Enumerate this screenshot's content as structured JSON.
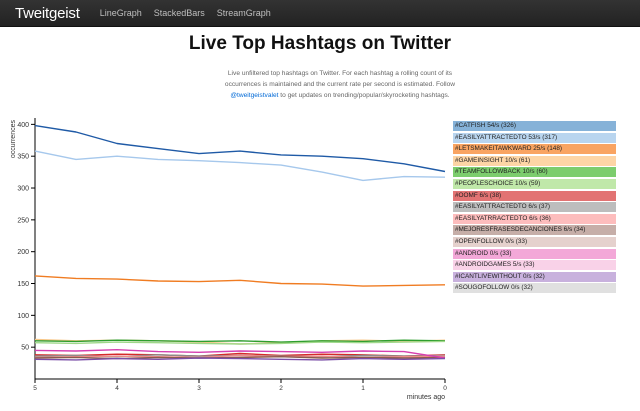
{
  "navbar": {
    "brand": "Tweitgeist",
    "links": [
      "LineGraph",
      "StackedBars",
      "StreamGraph"
    ]
  },
  "page_title": "Live Top Hashtags on Twitter",
  "intro": {
    "text_before": "Live unfiltered top hashtags on Twitter. For each hashtag a rolling count of its occurrences is maintained and the current rate per second is estimated. Follow ",
    "link": "@tweitgeistvalet",
    "text_after": " to get updates on trending/popular/skyrocketing hashtags."
  },
  "legend": [
    {
      "label": "#CATFISH 54/s (326)",
      "color": "#86b2d8"
    },
    {
      "label": "#EASILYATTRACTEDTO 53/s (317)",
      "color": "#b9d5ef"
    },
    {
      "label": "#LETSMAKEITAWKWARD 25/s (148)",
      "color": "#f9a462"
    },
    {
      "label": "#GAMEINSIGHT 10/s (61)",
      "color": "#fdd5a6"
    },
    {
      "label": "#TEAMFOLLOWBACK 10/s (60)",
      "color": "#7ccd6d"
    },
    {
      "label": "#PEOPLESCHOICE 10/s (59)",
      "color": "#c0e8a9"
    },
    {
      "label": "#OOMF 6/s (38)",
      "color": "#e27373"
    },
    {
      "label": "#EASILYATTRACTEDTO 6/s (37)",
      "color": "#bdbdbd"
    },
    {
      "label": "#EASILYATRRACTEDTO 6/s (36)",
      "color": "#fdbdbd"
    },
    {
      "label": "#MEJORESFRASESDECANCIONES 6/s (34)",
      "color": "#c6aea8"
    },
    {
      "label": "#OPENFOLLOW 0/s (33)",
      "color": "#e5d1cd"
    },
    {
      "label": "#ANDROID 0/s (33)",
      "color": "#f3a8d8"
    },
    {
      "label": "#ANDROIDGAMES 5/s (33)",
      "color": "#f9d2e8"
    },
    {
      "label": "#ICANTLIVEWITHOUT 0/s (32)",
      "color": "#c8b1dd"
    },
    {
      "label": "#SOUGOFOLLOW 0/s (32)",
      "color": "#e0e0e0"
    }
  ],
  "chart_data": {
    "type": "line",
    "ylabel": "occurrences",
    "xlabel": "minutes ago",
    "x_ticks": [
      "5",
      "4",
      "3",
      "2",
      "1",
      "0"
    ],
    "y_ticks": [
      "50",
      "100",
      "150",
      "200",
      "250",
      "300",
      "350",
      "400"
    ],
    "xlim": [
      5,
      0
    ],
    "ylim": [
      0,
      410
    ],
    "grid": false,
    "x": [
      5,
      4.5,
      4,
      3.5,
      3,
      2.5,
      2,
      1.5,
      1,
      0.5,
      0
    ],
    "series": [
      {
        "name": "#CATFISH 54/s (326)",
        "color": "#1f5aa6",
        "values": [
          398,
          388,
          370,
          362,
          354,
          358,
          352,
          350,
          346,
          338,
          326
        ]
      },
      {
        "name": "#EASILYATTRACTEDTO 53/s (317)",
        "color": "#a6c8ec",
        "values": [
          358,
          345,
          350,
          345,
          343,
          340,
          336,
          325,
          312,
          318,
          317
        ]
      },
      {
        "name": "#LETSMAKEITAWKWARD 25/s (148)",
        "color": "#f07c22",
        "values": [
          162,
          158,
          157,
          154,
          153,
          155,
          150,
          149,
          146,
          147,
          148
        ]
      },
      {
        "name": "#GAMEINSIGHT 10/s (61)",
        "color": "#f8c88a",
        "values": [
          62,
          60,
          61,
          60,
          58,
          55,
          57,
          60,
          61,
          59,
          61
        ]
      },
      {
        "name": "#TEAMFOLLOWBACK 10/s (60)",
        "color": "#2e9e2e",
        "values": [
          60,
          59,
          61,
          60,
          59,
          60,
          58,
          60,
          59,
          61,
          60
        ]
      },
      {
        "name": "#PEOPLESCHOICE 10/s (59)",
        "color": "#9fd88a",
        "values": [
          57,
          56,
          58,
          57,
          56,
          55,
          56,
          58,
          57,
          58,
          59
        ]
      },
      {
        "name": "#OOMF 6/s (38)",
        "color": "#d42a2a",
        "values": [
          38,
          37,
          39,
          38,
          36,
          40,
          37,
          39,
          38,
          36,
          38
        ]
      },
      {
        "name": "#EASILYATTRACTEDTO 6/s (37)",
        "color": "#8c8c8c",
        "values": [
          36,
          37,
          35,
          38,
          36,
          37,
          36,
          35,
          37,
          36,
          37
        ]
      },
      {
        "name": "#EASILYATRRACTEDTO 6/s (36)",
        "color": "#f08a8a",
        "values": [
          34,
          35,
          36,
          35,
          34,
          37,
          35,
          36,
          34,
          35,
          36
        ]
      },
      {
        "name": "#MEJORESFRASESDECANCIONES 6/s (34)",
        "color": "#8b5a4c",
        "values": [
          33,
          34,
          32,
          34,
          33,
          34,
          35,
          33,
          34,
          33,
          34
        ]
      },
      {
        "name": "#ANDROID 0/s (33)",
        "color": "#d63fb0",
        "values": [
          45,
          44,
          46,
          43,
          42,
          44,
          43,
          42,
          44,
          43,
          33
        ]
      },
      {
        "name": "#ICANTLIVEWITHOUT 0/s (32)",
        "color": "#7b4fa8",
        "values": [
          31,
          30,
          32,
          31,
          33,
          32,
          31,
          30,
          32,
          31,
          32
        ]
      }
    ]
  }
}
